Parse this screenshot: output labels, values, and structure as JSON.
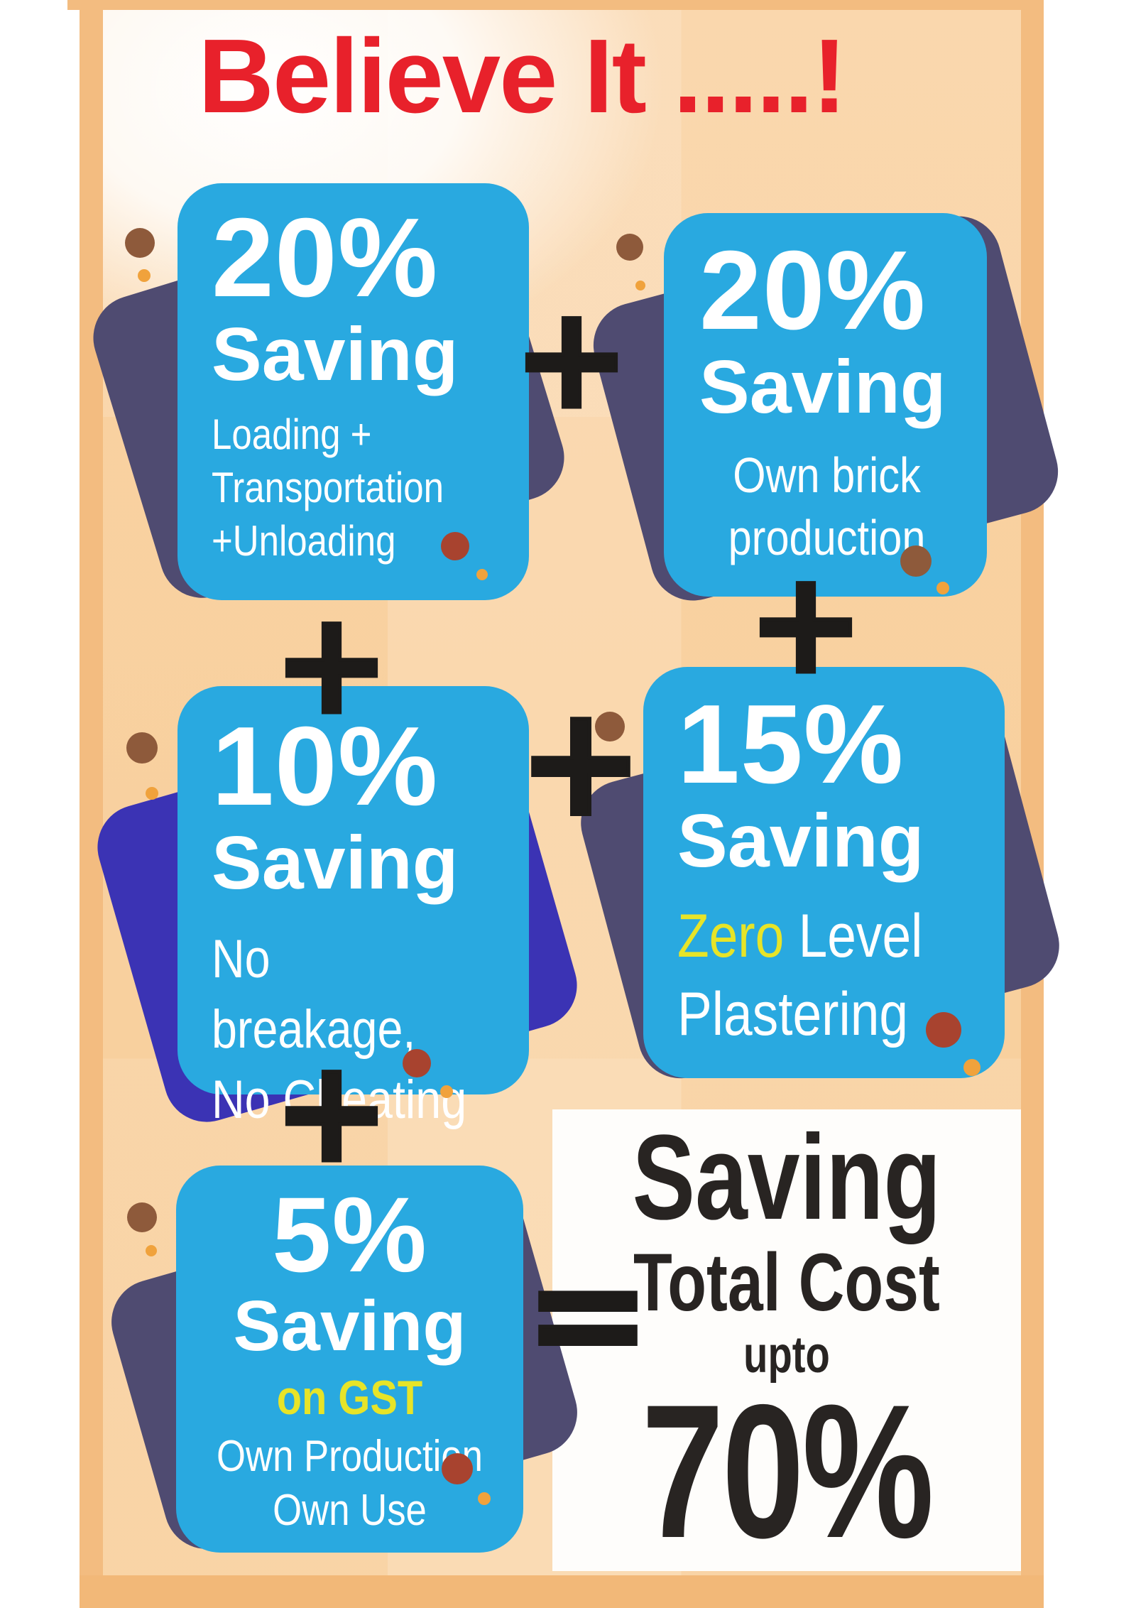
{
  "title": "Believe It .....!",
  "operators": {
    "plus": "+",
    "equals": "="
  },
  "cards": [
    {
      "percent": "20%",
      "saving": "Saving",
      "line1": "Loading +",
      "line2": "Transportation",
      "line3": "+Unloading"
    },
    {
      "percent": "20%",
      "saving": "Saving",
      "line1": "Own brick",
      "line2": "production"
    },
    {
      "percent": "10%",
      "saving": "Saving",
      "line1": "No breakage,",
      "line2": "No Cheating"
    },
    {
      "percent": "15%",
      "saving": "Saving",
      "highlight": "Zero",
      "line1_rest": " Level",
      "line2": "Plastering"
    },
    {
      "percent": "5%",
      "saving": "Saving",
      "highlight": "on GST",
      "line1": "Own Production",
      "line2": "Own Use"
    }
  ],
  "result": {
    "saving": "Saving",
    "total_cost": "Total Cost",
    "upto": "upto",
    "percent": "70%"
  },
  "colors": {
    "card_blue": "#29a9e0",
    "shadow_navy": "#4f4b71",
    "shadow_indigo": "#3b33b4",
    "title_red": "#e8212b",
    "highlight_yellow": "#e7e428",
    "peach_background": "#f9d2a2",
    "frame_orange": "#f3bc80",
    "dark_text": "#282422",
    "dot_brown": "#8e5a3b",
    "dot_orange": "#f0a23c",
    "dot_rust": "#a8432f"
  }
}
